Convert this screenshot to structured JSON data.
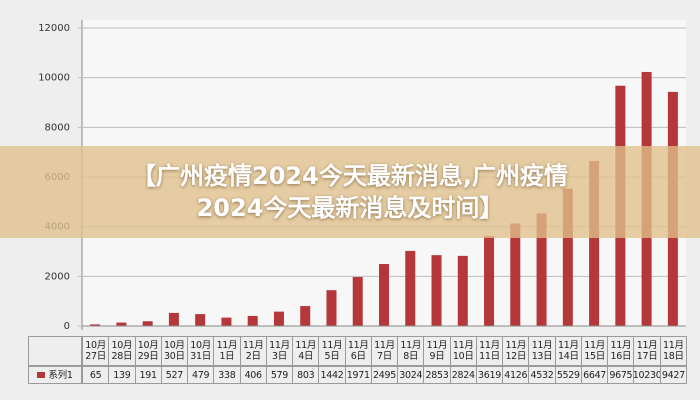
{
  "chart_data": {
    "type": "bar",
    "categories": [
      "10月27日",
      "10月28日",
      "10月29日",
      "10月30日",
      "10月31日",
      "11月1日",
      "11月2日",
      "11月3日",
      "11月4日",
      "11月5日",
      "11月6日",
      "11月7日",
      "11月8日",
      "11月9日",
      "11月10日",
      "11月11日",
      "11月12日",
      "11月13日",
      "11月14日",
      "11月15日",
      "11月16日",
      "11月17日",
      "11月18日"
    ],
    "series": [
      {
        "name": "系列1",
        "color": "#b5373a",
        "values": [
          65,
          139,
          191,
          527,
          479,
          338,
          406,
          579,
          803,
          1442,
          1971,
          2495,
          3024,
          2853,
          2824,
          3619,
          4126,
          4532,
          5529,
          6647,
          9675,
          10230,
          9427
        ]
      }
    ],
    "ylim": [
      0,
      12000
    ],
    "yticks": [
      0,
      2000,
      4000,
      6000,
      8000,
      10000,
      12000
    ],
    "grid": true
  },
  "banner": {
    "lines": [
      "【广州疫情2024今天最新消息,广州疫情",
      "2024今天最新消息及时间】"
    ]
  }
}
